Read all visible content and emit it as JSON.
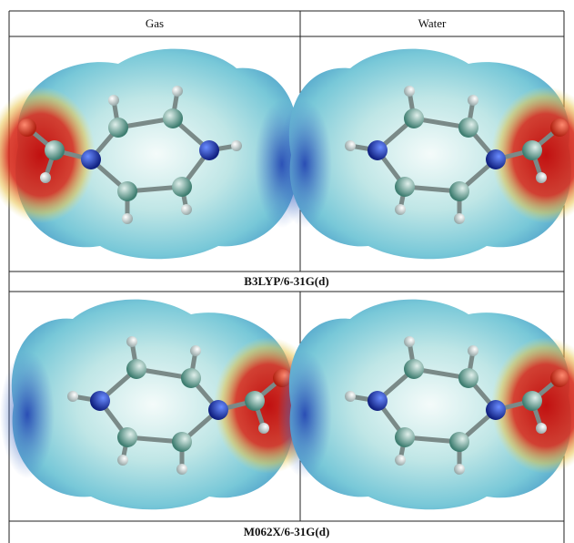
{
  "header": {
    "columns": [
      "Gas",
      "Water"
    ]
  },
  "rows": [
    {
      "label": "B3LYP/6-31G(d)"
    },
    {
      "label": "M062X/6-31G(d)"
    }
  ]
}
